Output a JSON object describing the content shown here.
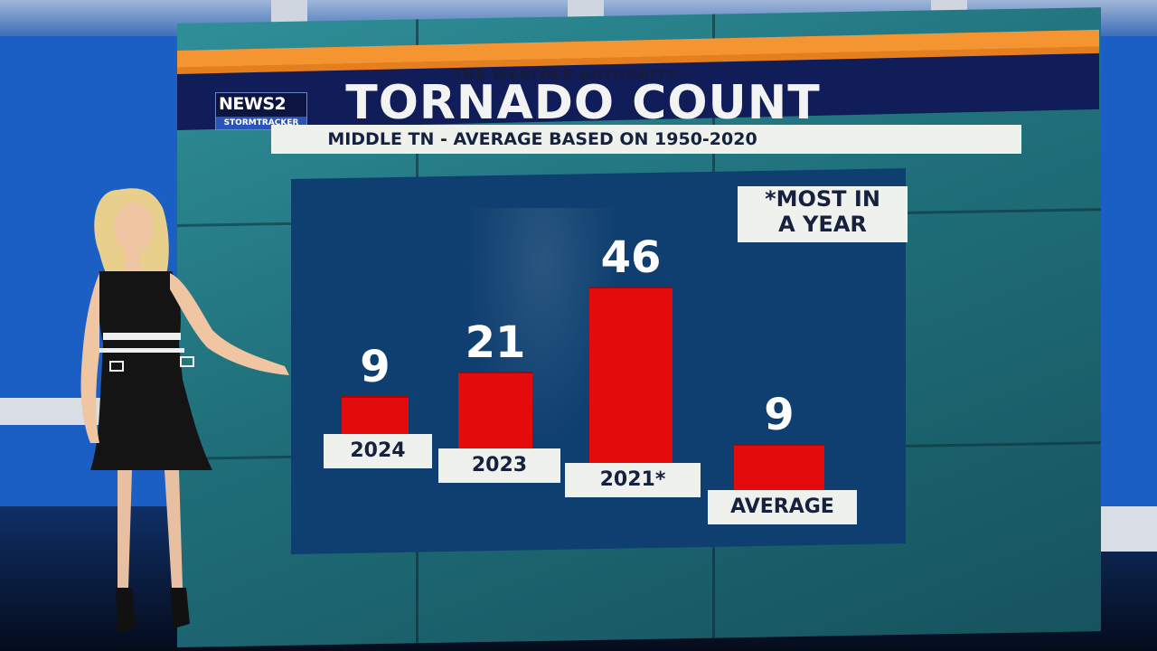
{
  "header": {
    "authority": "THE WEATHER AUTHORITY",
    "logo_top": "NEWS2",
    "logo_bottom": "STORMTRACKER",
    "title": "TORNADO COUNT",
    "subtitle": "MIDDLE TN - AVERAGE BASED ON 1950-2020"
  },
  "note": {
    "line1": "*MOST IN",
    "line2": "A YEAR"
  },
  "colors": {
    "bar": "#e30b0b",
    "header_navy": "#101d59",
    "header_orange": "#f59532",
    "panel": "#0f3f70"
  },
  "chart_data": {
    "type": "bar",
    "categories": [
      "2024",
      "2023",
      "2021*",
      "AVERAGE"
    ],
    "values": [
      9,
      21,
      46,
      9
    ],
    "title": "TORNADO COUNT",
    "subtitle": "MIDDLE TN - AVERAGE BASED ON 1950-2020",
    "annotations": [
      "*MOST IN A YEAR"
    ],
    "ylim": [
      0,
      46
    ]
  }
}
